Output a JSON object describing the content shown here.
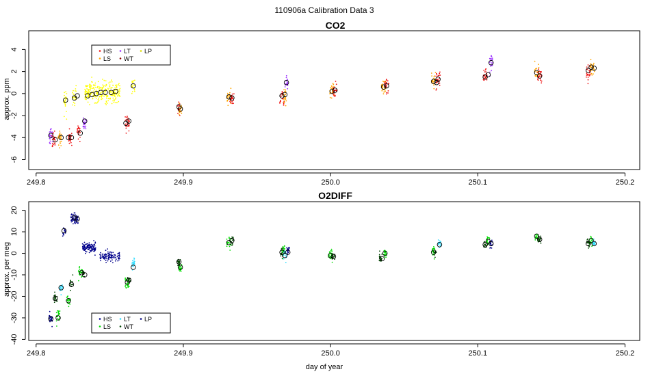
{
  "figure": {
    "suptitle": "110906a   Calibration Data 3",
    "xlabel": "day of year"
  },
  "colors": {
    "HS": "#ee1111",
    "LS_co2": "#ffa500",
    "LT": "#9b30ff",
    "WT": "#8b0000",
    "LP": "#ffff00",
    "HS_o2": "#00008b",
    "LS_o2": "#00dd00",
    "LT_o2": "#33ddff",
    "WT_o2": "#004400",
    "LP_o2": "#000080"
  },
  "chart_data": [
    {
      "type": "scatter",
      "title": "CO2",
      "xlabel": "",
      "ylabel": "approx. ppm",
      "xlim": [
        249.795,
        250.21
      ],
      "ylim": [
        -6.9,
        5.7
      ],
      "xticks": [
        249.8,
        249.9,
        250.0,
        250.1,
        250.2
      ],
      "xtick_labels": [
        "249.8",
        "249.9",
        "250.0",
        "250.1",
        "250.2"
      ],
      "yticks": [
        -6,
        -4,
        -2,
        0,
        2,
        4
      ],
      "ytick_labels": [
        "-6",
        "-4",
        "-2",
        "0",
        "2",
        "4"
      ],
      "legend": {
        "placement": "top-left",
        "entries": [
          {
            "label": "HS",
            "color": "#ee1111"
          },
          {
            "label": "LS",
            "color": "#ffa500"
          },
          {
            "label": "LT",
            "color": "#9b30ff"
          },
          {
            "label": "WT",
            "color": "#8b0000"
          },
          {
            "label": "LP",
            "color": "#dddd00"
          }
        ]
      },
      "clusters": [
        {
          "x": 249.81,
          "y": -3.8,
          "color": "#9b30ff",
          "sd": 0.7,
          "n": 25,
          "w": 0.0025
        },
        {
          "x": 249.812,
          "y": -4.3,
          "color": "#ee1111",
          "sd": 0.6,
          "n": 25,
          "w": 0.0025
        },
        {
          "x": 249.816,
          "y": -4.0,
          "color": "#ffa500",
          "sd": 0.6,
          "n": 25,
          "w": 0.0025
        },
        {
          "x": 249.82,
          "y": -0.6,
          "color": "#ffff00",
          "sd": 0.8,
          "n": 25,
          "w": 0.0025
        },
        {
          "x": 249.823,
          "y": -4.0,
          "color": "#ee1111",
          "sd": 0.6,
          "n": 25,
          "w": 0.0025
        },
        {
          "x": 249.826,
          "y": -0.3,
          "color": "#ffff00",
          "sd": 0.8,
          "n": 25,
          "w": 0.0025
        },
        {
          "x": 249.829,
          "y": -3.5,
          "color": "#ee1111",
          "sd": 0.6,
          "n": 25,
          "w": 0.0025
        },
        {
          "x": 249.833,
          "y": -2.6,
          "color": "#9b30ff",
          "sd": 0.7,
          "n": 25,
          "w": 0.0025
        },
        {
          "x": 249.845,
          "y": 0.1,
          "color": "#ffff00",
          "sd": 0.9,
          "n": 260,
          "w": 0.024
        },
        {
          "x": 249.862,
          "y": -2.7,
          "color": "#ee1111",
          "sd": 0.6,
          "n": 30,
          "w": 0.003
        },
        {
          "x": 249.866,
          "y": 0.7,
          "color": "#ffff00",
          "sd": 0.7,
          "n": 20,
          "w": 0.002
        },
        {
          "x": 249.897,
          "y": -1.3,
          "color": "#ee1111",
          "sd": 0.5,
          "n": 20,
          "w": 0.002
        },
        {
          "x": 249.898,
          "y": -1.4,
          "color": "#ffa500",
          "sd": 0.5,
          "n": 20,
          "w": 0.002
        },
        {
          "x": 249.931,
          "y": -0.3,
          "color": "#ffa500",
          "sd": 0.6,
          "n": 25,
          "w": 0.003
        },
        {
          "x": 249.933,
          "y": -0.4,
          "color": "#ee1111",
          "sd": 0.6,
          "n": 25,
          "w": 0.003
        },
        {
          "x": 249.967,
          "y": -0.3,
          "color": "#ee1111",
          "sd": 0.7,
          "n": 25,
          "w": 0.003
        },
        {
          "x": 249.969,
          "y": -0.2,
          "color": "#ffa500",
          "sd": 0.6,
          "n": 25,
          "w": 0.002
        },
        {
          "x": 249.97,
          "y": 1.0,
          "color": "#9b30ff",
          "sd": 0.6,
          "n": 20,
          "w": 0.002
        },
        {
          "x": 250.001,
          "y": 0.2,
          "color": "#ffa500",
          "sd": 0.6,
          "n": 25,
          "w": 0.003
        },
        {
          "x": 250.003,
          "y": 0.3,
          "color": "#ee1111",
          "sd": 0.6,
          "n": 25,
          "w": 0.003
        },
        {
          "x": 250.036,
          "y": 0.6,
          "color": "#ffa500",
          "sd": 0.6,
          "n": 25,
          "w": 0.003
        },
        {
          "x": 250.038,
          "y": 0.7,
          "color": "#ee1111",
          "sd": 0.6,
          "n": 25,
          "w": 0.003
        },
        {
          "x": 250.07,
          "y": 1.1,
          "color": "#ffa500",
          "sd": 0.6,
          "n": 25,
          "w": 0.003
        },
        {
          "x": 250.073,
          "y": 1.3,
          "color": "#ee1111",
          "sd": 0.7,
          "n": 25,
          "w": 0.003
        },
        {
          "x": 250.105,
          "y": 1.6,
          "color": "#ee1111",
          "sd": 0.6,
          "n": 25,
          "w": 0.003
        },
        {
          "x": 250.109,
          "y": 2.9,
          "color": "#9b30ff",
          "sd": 0.8,
          "n": 25,
          "w": 0.002
        },
        {
          "x": 250.14,
          "y": 2.0,
          "color": "#ffa500",
          "sd": 0.6,
          "n": 25,
          "w": 0.003
        },
        {
          "x": 250.142,
          "y": 1.6,
          "color": "#ee1111",
          "sd": 0.6,
          "n": 25,
          "w": 0.003
        },
        {
          "x": 250.175,
          "y": 2.1,
          "color": "#ee1111",
          "sd": 0.7,
          "n": 25,
          "w": 0.003
        },
        {
          "x": 250.178,
          "y": 2.4,
          "color": "#ffa500",
          "sd": 0.6,
          "n": 25,
          "w": 0.003
        }
      ],
      "means": [
        {
          "x": 249.81,
          "y": -3.8
        },
        {
          "x": 249.813,
          "y": -4.2
        },
        {
          "x": 249.817,
          "y": -4.0
        },
        {
          "x": 249.82,
          "y": -0.6
        },
        {
          "x": 249.822,
          "y": -4.0
        },
        {
          "x": 249.824,
          "y": -4.0
        },
        {
          "x": 249.826,
          "y": -0.4
        },
        {
          "x": 249.828,
          "y": -0.2
        },
        {
          "x": 249.83,
          "y": -3.6
        },
        {
          "x": 249.833,
          "y": -2.5
        },
        {
          "x": 249.835,
          "y": -0.2
        },
        {
          "x": 249.838,
          "y": -0.1
        },
        {
          "x": 249.841,
          "y": 0.0
        },
        {
          "x": 249.844,
          "y": 0.1
        },
        {
          "x": 249.847,
          "y": 0.1
        },
        {
          "x": 249.851,
          "y": 0.1
        },
        {
          "x": 249.854,
          "y": 0.2
        },
        {
          "x": 249.861,
          "y": -2.7
        },
        {
          "x": 249.863,
          "y": -2.5
        },
        {
          "x": 249.866,
          "y": 0.7
        },
        {
          "x": 249.897,
          "y": -1.2
        },
        {
          "x": 249.898,
          "y": -1.4
        },
        {
          "x": 249.931,
          "y": -0.3
        },
        {
          "x": 249.933,
          "y": -0.4
        },
        {
          "x": 249.967,
          "y": -0.2
        },
        {
          "x": 249.969,
          "y": -0.1
        },
        {
          "x": 249.97,
          "y": 1.0
        },
        {
          "x": 250.001,
          "y": 0.2
        },
        {
          "x": 250.003,
          "y": 0.3
        },
        {
          "x": 250.036,
          "y": 0.6
        },
        {
          "x": 250.038,
          "y": 0.7
        },
        {
          "x": 250.07,
          "y": 1.1
        },
        {
          "x": 250.072,
          "y": 1.0
        },
        {
          "x": 250.073,
          "y": 1.3
        },
        {
          "x": 250.105,
          "y": 1.5
        },
        {
          "x": 250.107,
          "y": 1.7
        },
        {
          "x": 250.109,
          "y": 2.8
        },
        {
          "x": 250.14,
          "y": 1.9
        },
        {
          "x": 250.142,
          "y": 1.6
        },
        {
          "x": 250.175,
          "y": 2.1
        },
        {
          "x": 250.177,
          "y": 2.4
        },
        {
          "x": 250.179,
          "y": 2.3
        }
      ]
    },
    {
      "type": "scatter",
      "title": "O2DIFF",
      "xlabel": "day of year",
      "ylabel": "approx. per meg",
      "xlim": [
        249.795,
        250.21
      ],
      "ylim": [
        -40.5,
        24
      ],
      "xticks": [
        249.8,
        249.9,
        250.0,
        250.1,
        250.2
      ],
      "xtick_labels": [
        "249.8",
        "249.9",
        "250.0",
        "250.1",
        "250.2"
      ],
      "yticks": [
        -40,
        -30,
        -20,
        -10,
        0,
        10,
        20
      ],
      "ytick_labels": [
        "-40",
        "-30",
        "-20",
        "-10",
        "0",
        "10",
        "20"
      ],
      "legend": {
        "placement": "bottom-left",
        "entries": [
          {
            "label": "HS",
            "color": "#00008b"
          },
          {
            "label": "LS",
            "color": "#00dd00"
          },
          {
            "label": "LT",
            "color": "#33ddff"
          },
          {
            "label": "WT",
            "color": "#004400"
          },
          {
            "label": "LP",
            "color": "#000080"
          }
        ]
      },
      "clusters": [
        {
          "x": 249.81,
          "y": -30.5,
          "color": "#00008b",
          "sd": 2.2,
          "n": 25,
          "w": 0.0025
        },
        {
          "x": 249.813,
          "y": -21.0,
          "color": "#004400",
          "sd": 2.0,
          "n": 20,
          "w": 0.0025
        },
        {
          "x": 249.815,
          "y": -29.0,
          "color": "#00dd00",
          "sd": 3.0,
          "n": 25,
          "w": 0.0025
        },
        {
          "x": 249.817,
          "y": -16.0,
          "color": "#33ddff",
          "sd": 2.0,
          "n": 20,
          "w": 0.002
        },
        {
          "x": 249.819,
          "y": 10.0,
          "color": "#00008b",
          "sd": 2.0,
          "n": 15,
          "w": 0.002
        },
        {
          "x": 249.822,
          "y": -22.0,
          "color": "#00dd00",
          "sd": 2.5,
          "n": 20,
          "w": 0.0025
        },
        {
          "x": 249.824,
          "y": -14.0,
          "color": "#004400",
          "sd": 2.0,
          "n": 15,
          "w": 0.002
        },
        {
          "x": 249.826,
          "y": 16.0,
          "color": "#00008b",
          "sd": 2.2,
          "n": 60,
          "w": 0.005
        },
        {
          "x": 249.83,
          "y": -9.0,
          "color": "#00dd00",
          "sd": 2.5,
          "n": 25,
          "w": 0.003
        },
        {
          "x": 249.832,
          "y": -9.0,
          "color": "#004400",
          "sd": 2.0,
          "n": 15,
          "w": 0.002
        },
        {
          "x": 249.836,
          "y": 2.5,
          "color": "#00008b",
          "sd": 2.0,
          "n": 120,
          "w": 0.009
        },
        {
          "x": 249.85,
          "y": -1.5,
          "color": "#00008b",
          "sd": 2.0,
          "n": 110,
          "w": 0.014
        },
        {
          "x": 249.862,
          "y": -14.0,
          "color": "#00dd00",
          "sd": 3.0,
          "n": 25,
          "w": 0.003
        },
        {
          "x": 249.863,
          "y": -12.0,
          "color": "#004400",
          "sd": 2.0,
          "n": 12,
          "w": 0.002
        },
        {
          "x": 249.866,
          "y": -5.0,
          "color": "#33ddff",
          "sd": 2.0,
          "n": 20,
          "w": 0.002
        },
        {
          "x": 249.897,
          "y": -4.5,
          "color": "#004400",
          "sd": 2.2,
          "n": 20,
          "w": 0.002
        },
        {
          "x": 249.898,
          "y": -7.0,
          "color": "#00dd00",
          "sd": 2.5,
          "n": 20,
          "w": 0.002
        },
        {
          "x": 249.931,
          "y": 5.0,
          "color": "#00dd00",
          "sd": 2.0,
          "n": 25,
          "w": 0.003
        },
        {
          "x": 249.933,
          "y": 6.0,
          "color": "#004400",
          "sd": 1.5,
          "n": 15,
          "w": 0.002
        },
        {
          "x": 249.967,
          "y": 0.5,
          "color": "#004400",
          "sd": 2.0,
          "n": 20,
          "w": 0.002
        },
        {
          "x": 249.968,
          "y": 1.0,
          "color": "#00dd00",
          "sd": 2.0,
          "n": 20,
          "w": 0.002
        },
        {
          "x": 249.969,
          "y": -1.0,
          "color": "#33ddff",
          "sd": 2.0,
          "n": 20,
          "w": 0.002
        },
        {
          "x": 249.971,
          "y": 1.5,
          "color": "#00008b",
          "sd": 1.8,
          "n": 20,
          "w": 0.002
        },
        {
          "x": 250.0,
          "y": -1.0,
          "color": "#00dd00",
          "sd": 2.0,
          "n": 25,
          "w": 0.003
        },
        {
          "x": 250.002,
          "y": -1.5,
          "color": "#004400",
          "sd": 1.5,
          "n": 15,
          "w": 0.002
        },
        {
          "x": 250.034,
          "y": -2.0,
          "color": "#004400",
          "sd": 2.0,
          "n": 20,
          "w": 0.002
        },
        {
          "x": 250.037,
          "y": 0.0,
          "color": "#00dd00",
          "sd": 2.0,
          "n": 20,
          "w": 0.002
        },
        {
          "x": 250.07,
          "y": 1.0,
          "color": "#00dd00",
          "sd": 2.0,
          "n": 20,
          "w": 0.002
        },
        {
          "x": 250.071,
          "y": 0.5,
          "color": "#004400",
          "sd": 1.5,
          "n": 12,
          "w": 0.002
        },
        {
          "x": 250.074,
          "y": 4.0,
          "color": "#33ddff",
          "sd": 1.8,
          "n": 20,
          "w": 0.002
        },
        {
          "x": 250.105,
          "y": 4.0,
          "color": "#004400",
          "sd": 1.8,
          "n": 20,
          "w": 0.002
        },
        {
          "x": 250.107,
          "y": 6.0,
          "color": "#00dd00",
          "sd": 2.0,
          "n": 20,
          "w": 0.002
        },
        {
          "x": 250.109,
          "y": 4.5,
          "color": "#00008b",
          "sd": 1.8,
          "n": 20,
          "w": 0.002
        },
        {
          "x": 250.14,
          "y": 7.5,
          "color": "#00dd00",
          "sd": 1.5,
          "n": 20,
          "w": 0.002
        },
        {
          "x": 250.142,
          "y": 6.5,
          "color": "#004400",
          "sd": 1.5,
          "n": 20,
          "w": 0.002
        },
        {
          "x": 250.175,
          "y": 4.5,
          "color": "#004400",
          "sd": 1.8,
          "n": 20,
          "w": 0.002
        },
        {
          "x": 250.177,
          "y": 6.0,
          "color": "#00dd00",
          "sd": 2.0,
          "n": 20,
          "w": 0.002
        },
        {
          "x": 250.179,
          "y": 5.0,
          "color": "#33ddff",
          "sd": 1.5,
          "n": 20,
          "w": 0.002
        }
      ],
      "means": [
        {
          "x": 249.81,
          "y": -30.5
        },
        {
          "x": 249.813,
          "y": -21.0
        },
        {
          "x": 249.815,
          "y": -30.0
        },
        {
          "x": 249.817,
          "y": -16.0
        },
        {
          "x": 249.819,
          "y": 10.5
        },
        {
          "x": 249.822,
          "y": -22.0
        },
        {
          "x": 249.824,
          "y": -14.5
        },
        {
          "x": 249.826,
          "y": 16.5
        },
        {
          "x": 249.828,
          "y": 16.0
        },
        {
          "x": 249.831,
          "y": -9.0
        },
        {
          "x": 249.833,
          "y": -10.0
        },
        {
          "x": 249.862,
          "y": -13.5
        },
        {
          "x": 249.863,
          "y": -12.5
        },
        {
          "x": 249.866,
          "y": -6.5
        },
        {
          "x": 249.897,
          "y": -4.0
        },
        {
          "x": 249.898,
          "y": -6.5
        },
        {
          "x": 249.931,
          "y": 5.0
        },
        {
          "x": 249.933,
          "y": 6.0
        },
        {
          "x": 249.967,
          "y": 0.5
        },
        {
          "x": 249.969,
          "y": -1.0
        },
        {
          "x": 249.971,
          "y": 0.5
        },
        {
          "x": 250.0,
          "y": -1.0
        },
        {
          "x": 250.002,
          "y": -1.5
        },
        {
          "x": 250.035,
          "y": -2.5
        },
        {
          "x": 250.037,
          "y": 0.0
        },
        {
          "x": 250.07,
          "y": 0.5
        },
        {
          "x": 250.074,
          "y": 4.0
        },
        {
          "x": 250.105,
          "y": 4.0
        },
        {
          "x": 250.107,
          "y": 5.5
        },
        {
          "x": 250.109,
          "y": 4.5
        },
        {
          "x": 250.14,
          "y": 8.0
        },
        {
          "x": 250.142,
          "y": 6.5
        },
        {
          "x": 250.175,
          "y": 4.5
        },
        {
          "x": 250.177,
          "y": 6.0
        },
        {
          "x": 250.179,
          "y": 4.5
        }
      ]
    }
  ]
}
